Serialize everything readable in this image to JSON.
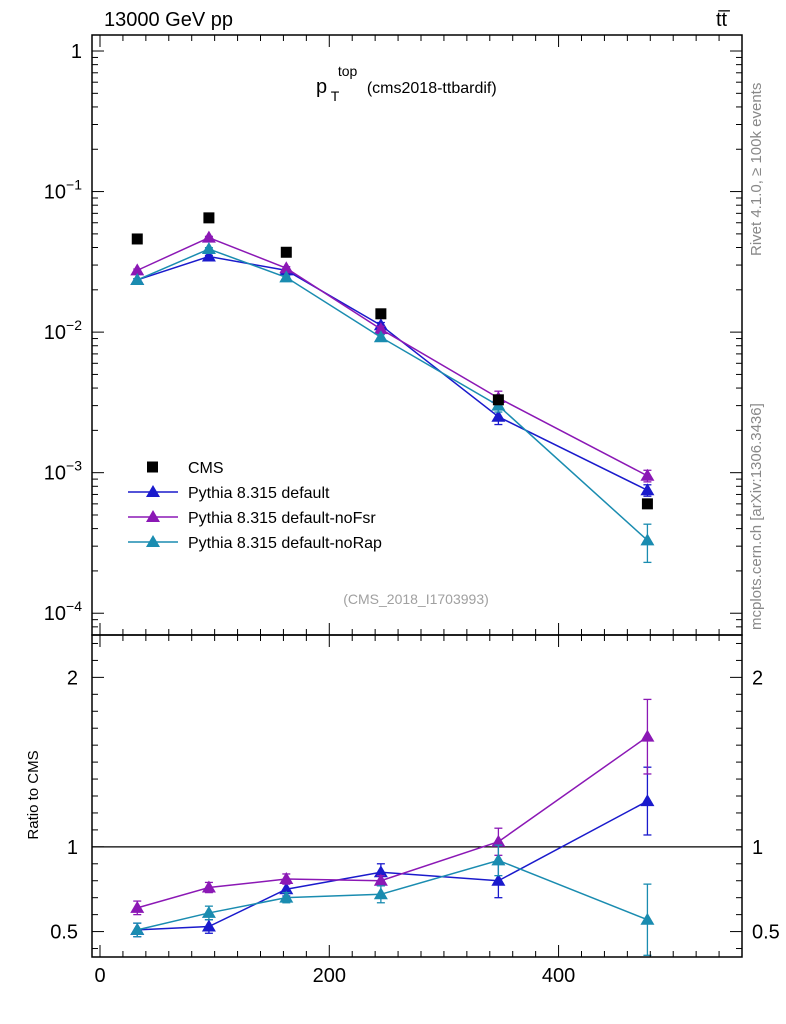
{
  "header": {
    "energy_label": "13000 GeV pp",
    "process_label": "tt̅"
  },
  "side_labels": {
    "rivet": "Rivet 4.1.0, ≥ 100k events",
    "mcplots": "mcplots.cern.ch [arXiv:1306.3436]"
  },
  "chart_data": [
    {
      "type": "line",
      "scale": "log",
      "title_main": "p",
      "title_sup": "top",
      "title_sub": "T",
      "title_suffix": "(cms2018-ttbardif)",
      "watermark": "(CMS_2018_I1703993)",
      "xlim": [
        0,
        560
      ],
      "ylim": [
        7e-05,
        1.3
      ],
      "y_ticks": [
        {
          "value": 1,
          "base": "1",
          "exp": ""
        },
        {
          "value": 0.1,
          "base": "10",
          "exp": "−1"
        },
        {
          "value": 0.01,
          "base": "10",
          "exp": "−2"
        },
        {
          "value": 0.001,
          "base": "10",
          "exp": "−3"
        },
        {
          "value": 0.0001,
          "base": "10",
          "exp": "−4"
        }
      ],
      "x": [
        32.5,
        95,
        162.5,
        245,
        347.5,
        477.5
      ],
      "series": [
        {
          "name": "CMS",
          "color": "#000000",
          "marker": "square",
          "line": false,
          "values": [
            0.046,
            0.065,
            0.037,
            0.0135,
            0.0033,
            0.0006
          ],
          "errors": [
            0,
            0,
            0,
            0,
            0,
            0
          ]
        },
        {
          "name": "Pythia 8.315 default",
          "color": "#1a1acc",
          "marker": "triangle",
          "line": true,
          "values": [
            0.0235,
            0.0345,
            0.0275,
            0.0112,
            0.0025,
            0.00075
          ],
          "errors": [
            0.0005,
            0.0007,
            0.0006,
            0.0005,
            0.0003,
            7e-05
          ]
        },
        {
          "name": "Pythia 8.315 default-noFsr",
          "color": "#8b18b5",
          "marker": "triangle",
          "line": true,
          "values": [
            0.0275,
            0.047,
            0.0285,
            0.0105,
            0.0034,
            0.00095
          ],
          "errors": [
            0.0006,
            0.001,
            0.0007,
            0.0005,
            0.0004,
            9e-05
          ]
        },
        {
          "name": "Pythia 8.315 default-noRap",
          "color": "#1a8cb0",
          "marker": "triangle",
          "line": true,
          "values": [
            0.0235,
            0.039,
            0.0245,
            0.0092,
            0.003,
            0.00033
          ],
          "errors": [
            0.0005,
            0.0009,
            0.0006,
            0.0004,
            0.0003,
            0.0001
          ]
        }
      ]
    },
    {
      "type": "line",
      "scale": "linear",
      "ylabel": "Ratio to CMS",
      "reference_line": 1,
      "xlim": [
        0,
        560
      ],
      "ylim": [
        0.35,
        2.25
      ],
      "x_ticks": [
        0,
        200,
        400
      ],
      "y_ticks": [
        0.5,
        1,
        2
      ],
      "x": [
        32.5,
        95,
        162.5,
        245,
        347.5,
        477.5
      ],
      "series": [
        {
          "name": "Pythia 8.315 default",
          "color": "#1a1acc",
          "values": [
            0.51,
            0.53,
            0.75,
            0.85,
            0.8,
            1.27
          ],
          "errors": [
            0.04,
            0.04,
            0.04,
            0.05,
            0.1,
            0.2
          ]
        },
        {
          "name": "Pythia 8.315 default-noFsr",
          "color": "#8b18b5",
          "values": [
            0.64,
            0.76,
            0.81,
            0.8,
            1.03,
            1.65
          ],
          "errors": [
            0.04,
            0.03,
            0.03,
            0.03,
            0.08,
            0.22
          ]
        },
        {
          "name": "Pythia 8.315 default-noRap",
          "color": "#1a8cb0",
          "values": [
            0.51,
            0.61,
            0.7,
            0.72,
            0.92,
            0.57
          ],
          "errors": [
            0.04,
            0.04,
            0.03,
            0.05,
            0.09,
            0.21
          ]
        }
      ]
    }
  ]
}
